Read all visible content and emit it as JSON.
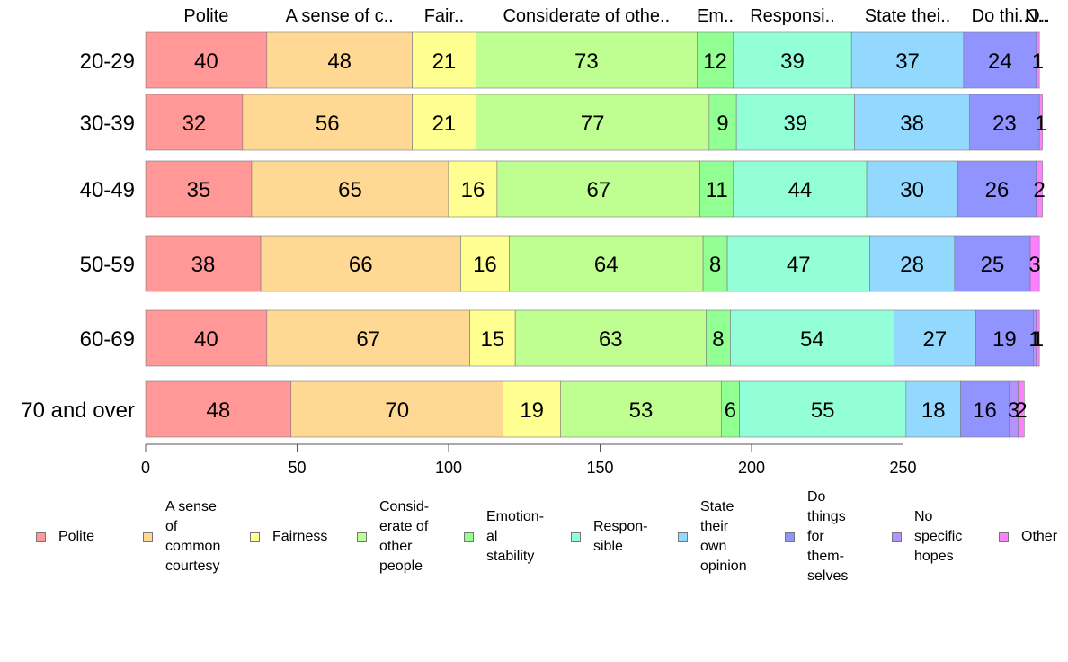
{
  "chart_data": {
    "type": "bar",
    "orientation": "horizontal",
    "stacked": true,
    "categories": [
      "20-29",
      "30-39",
      "40-49",
      "50-59",
      "60-69",
      "70 and over"
    ],
    "series": [
      {
        "name": "Polite",
        "header": "Polite",
        "legend": "Polite",
        "color": "#FF9896",
        "values": [
          40,
          32,
          35,
          38,
          40,
          48
        ]
      },
      {
        "name": "A sense of common courtesy",
        "header": "A sense of c..",
        "legend": "A sense\nof\ncommon\ncourtesy",
        "color": "#FFD893",
        "values": [
          48,
          56,
          65,
          66,
          67,
          70
        ]
      },
      {
        "name": "Fairness",
        "header": "Fair..",
        "legend": "Fairness",
        "color": "#FFFF91",
        "values": [
          21,
          21,
          16,
          16,
          15,
          19
        ]
      },
      {
        "name": "Considerate of other people",
        "header": "Considerate of othe..",
        "legend": "Consid-\nerate of\nother\npeople",
        "color": "#BFFF91",
        "values": [
          73,
          77,
          67,
          64,
          63,
          53
        ]
      },
      {
        "name": "Emotional stability",
        "header": "Em..",
        "legend": "Emotion-\nal\nstability",
        "color": "#91FF91",
        "values": [
          12,
          9,
          11,
          8,
          8,
          6
        ]
      },
      {
        "name": "Responsible",
        "header": "Responsi..",
        "legend": "Respon-\nsible",
        "color": "#93FFD8",
        "values": [
          39,
          39,
          44,
          47,
          54,
          55
        ]
      },
      {
        "name": "State their own opinion",
        "header": "State thei..",
        "legend": "State\ntheir\nown\nopinion",
        "color": "#93D8FF",
        "values": [
          37,
          38,
          30,
          28,
          27,
          18
        ]
      },
      {
        "name": "Do things for themselves",
        "header": "Do thi..",
        "legend": "Do\nthings\nfor\nthem-\nselves",
        "color": "#9193FF",
        "values": [
          24,
          23,
          26,
          25,
          19,
          16
        ]
      },
      {
        "name": "No specific hopes",
        "header": "N..",
        "legend": "No\nspecific\nhopes",
        "color": "#B493FF",
        "values": [
          0,
          0,
          0,
          0,
          1,
          3
        ]
      },
      {
        "name": "Other",
        "header": "O..",
        "legend": "Other",
        "color": "#FF80FF",
        "values": [
          1,
          1,
          2,
          3,
          1,
          2
        ]
      }
    ],
    "xlim": [
      0,
      295
    ],
    "xticks": [
      0,
      50,
      100,
      150,
      200,
      250
    ],
    "xlabel": "",
    "ylabel": "",
    "title": "",
    "grid": false,
    "legend_position": "bottom"
  }
}
